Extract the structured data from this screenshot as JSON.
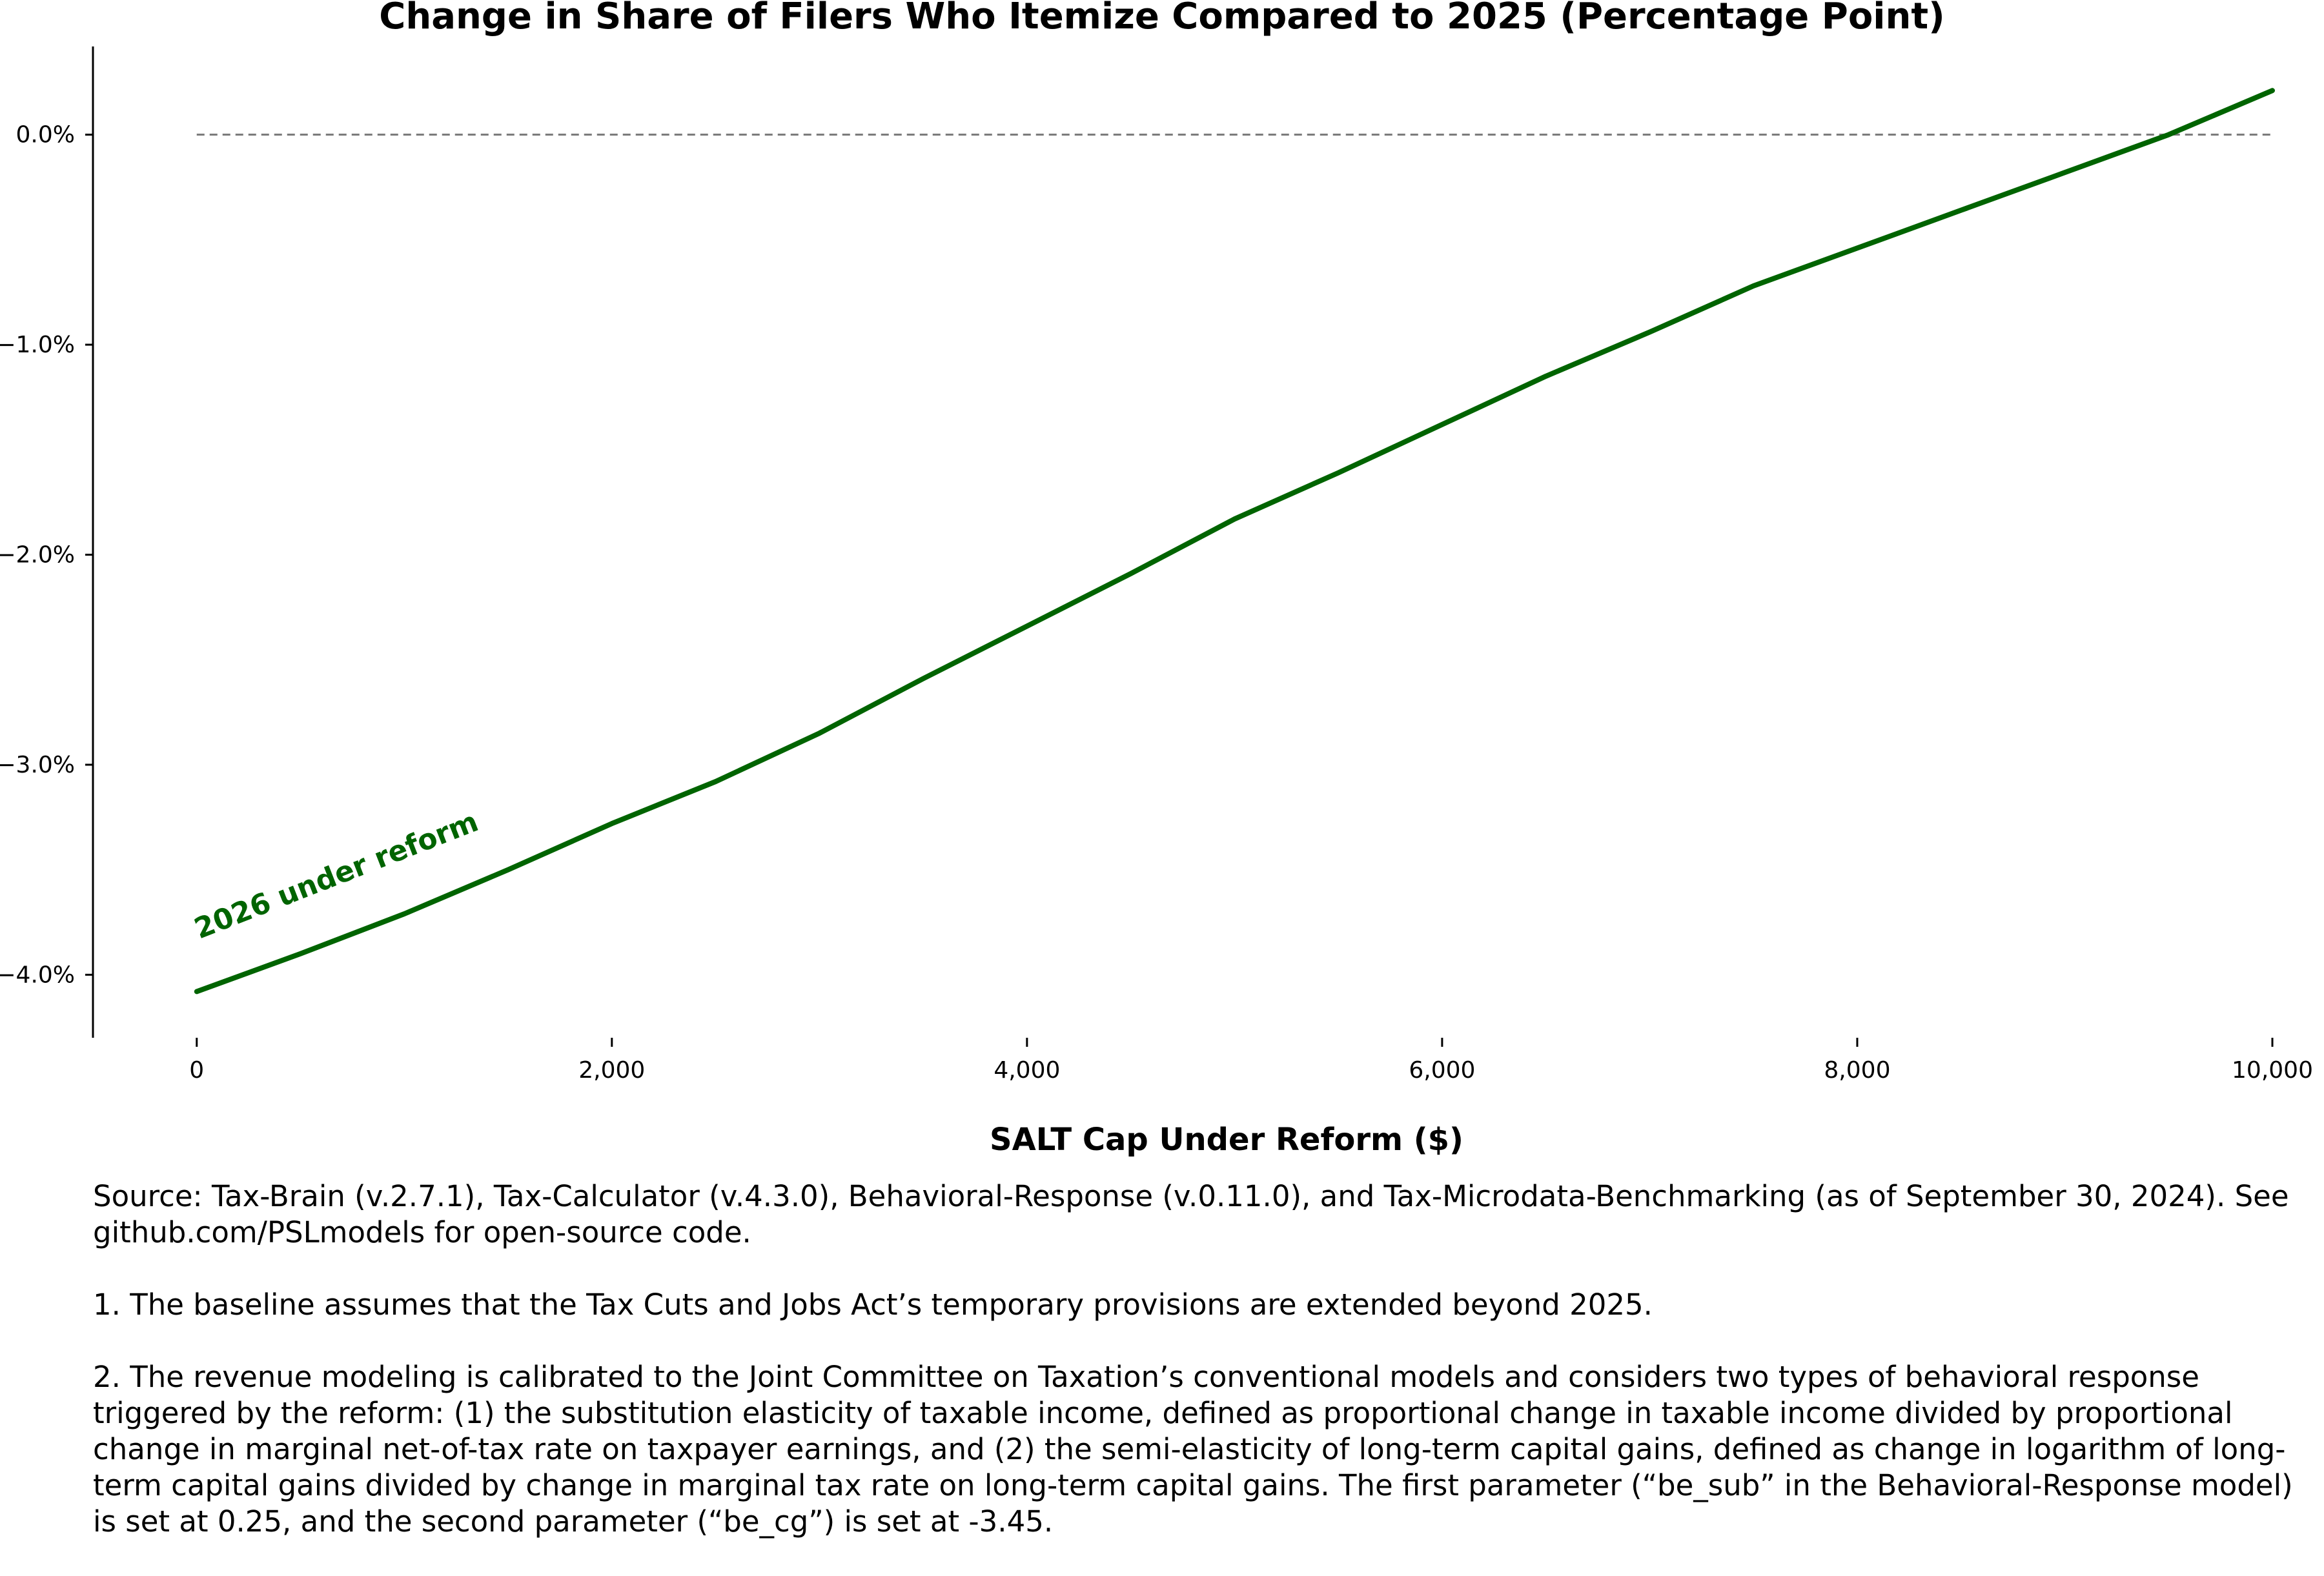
{
  "chart_data": {
    "type": "line",
    "title": "Change in Share of Filers Who Itemize Compared to 2025 (Percentage Point)",
    "xlabel": "SALT Cap Under Reform ($)",
    "ylabel": "",
    "xlim": [
      -500,
      10000
    ],
    "ylim": [
      -4.3,
      0.42
    ],
    "x_ticks": [
      0,
      2000,
      4000,
      6000,
      8000,
      10000
    ],
    "x_tick_labels": [
      "0",
      "2,000",
      "4,000",
      "6,000",
      "8,000",
      "10,000"
    ],
    "y_ticks": [
      0,
      -1,
      -2,
      -3,
      -4
    ],
    "y_tick_labels": [
      "0.0%",
      "−1.0%",
      "−2.0%",
      "−3.0%",
      "−4.0%"
    ],
    "grid": false,
    "reference_line": {
      "y": 0,
      "style": "dashed",
      "color": "#777777"
    },
    "series": [
      {
        "name": "2026 under reform",
        "color": "#006400",
        "x": [
          0,
          500,
          1000,
          1500,
          2000,
          2500,
          3000,
          3500,
          4000,
          4500,
          5000,
          5500,
          6000,
          6500,
          7000,
          7500,
          8000,
          8500,
          9000,
          9500,
          10000
        ],
        "values": [
          -4.08,
          -3.9,
          -3.71,
          -3.5,
          -3.28,
          -3.08,
          -2.85,
          -2.59,
          -2.34,
          -2.09,
          -1.83,
          -1.61,
          -1.38,
          -1.15,
          -0.94,
          -0.72,
          -0.54,
          -0.36,
          -0.18,
          0.0,
          0.21
        ]
      }
    ]
  },
  "notes": {
    "source": "Source: Tax-Brain (v.2.7.1), Tax-Calculator (v.4.3.0), Behavioral-Response (v.0.11.0), and Tax-Microdata-Benchmarking (as of September 30, 2024). See github.com/PSLmodels for open-source code.",
    "note_1": "1. The baseline assumes that the Tax Cuts and Jobs Act’s temporary provisions are extended beyond 2025.",
    "note_2": "2. The revenue modeling is calibrated to the Joint Committee on Taxation’s conventional models and considers two types of behavioral response triggered by the reform: (1) the substitution elasticity of taxable income, defined as proportional change in taxable income divided by proportional change in marginal net-of-tax rate on taxpayer earnings, and (2) the semi-elasticity of long-term capital gains, defined as change in logarithm of long-term capital gains divided by change in marginal tax rate on long-term capital gains. The first parameter (“be_sub” in the Behavioral-Response model) is set at 0.25, and the second parameter (“be_cg”) is set at -3.45."
  }
}
